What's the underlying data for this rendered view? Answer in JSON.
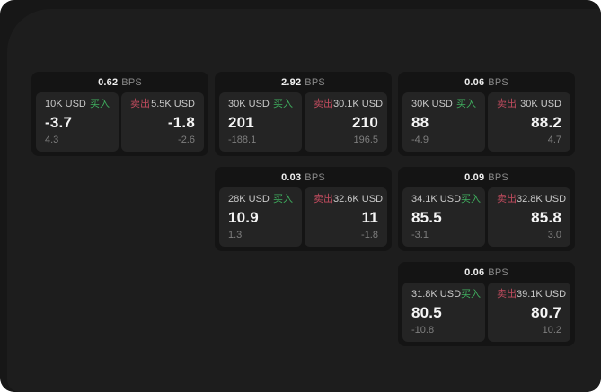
{
  "labels": {
    "buy": "买入",
    "sell": "卖出",
    "bps_unit": "BPS"
  },
  "colors": {
    "buy_green": "#3fae5e",
    "sell_red": "#c04b5e",
    "window_bg": "#171717",
    "surface_bg": "#1d1d1d",
    "card_bg": "#141414",
    "panel_bg": "#242424"
  },
  "cards": [
    {
      "bps": "0.62",
      "buy": {
        "amount": "10K USD",
        "price": "-3.7",
        "delta": "4.3"
      },
      "sell": {
        "amount": "5.5K USD",
        "price": "-1.8",
        "delta": "-2.6"
      }
    },
    {
      "bps": "2.92",
      "buy": {
        "amount": "30K USD",
        "price": "201",
        "delta": "-188.1"
      },
      "sell": {
        "amount": "30.1K USD",
        "price": "210",
        "delta": "196.5"
      }
    },
    {
      "bps": "0.06",
      "buy": {
        "amount": "30K USD",
        "price": "88",
        "delta": "-4.9"
      },
      "sell": {
        "amount": "30K USD",
        "price": "88.2",
        "delta": "4.7"
      }
    },
    {
      "bps": "0.03",
      "buy": {
        "amount": "28K USD",
        "price": "10.9",
        "delta": "1.3"
      },
      "sell": {
        "amount": "32.6K USD",
        "price": "11",
        "delta": "-1.8"
      }
    },
    {
      "bps": "0.09",
      "buy": {
        "amount": "34.1K USD",
        "price": "85.5",
        "delta": "-3.1"
      },
      "sell": {
        "amount": "32.8K USD",
        "price": "85.8",
        "delta": "3.0"
      }
    },
    {
      "bps": "0.06",
      "buy": {
        "amount": "31.8K USD",
        "price": "80.5",
        "delta": "-10.8"
      },
      "sell": {
        "amount": "39.1K USD",
        "price": "80.7",
        "delta": "10.2"
      }
    }
  ]
}
